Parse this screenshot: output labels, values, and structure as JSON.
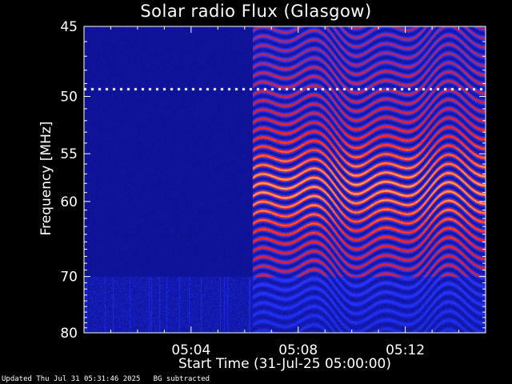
{
  "chart_data": {
    "type": "heatmap",
    "title": "Solar radio Flux (Glasgow)",
    "xlabel": "Start Time (31-Jul-25 05:00:00)",
    "ylabel": "Frequency [MHz]",
    "x_tick_labels": [
      "05:04",
      "05:08",
      "05:12"
    ],
    "x_tick_minutes": [
      4,
      8,
      12
    ],
    "x_range_minutes": [
      0,
      15
    ],
    "y_tick_labels": [
      "45",
      "50",
      "55",
      "60",
      "70",
      "80"
    ],
    "y_tick_values": [
      45,
      50,
      55,
      60,
      70,
      80
    ],
    "y_range": [
      45,
      80
    ],
    "y_scale": "reciprocal",
    "colors": {
      "background": "#000000",
      "low": "#0a0a7a",
      "mid": "#2233ff",
      "high": "#ff2010",
      "peak": "#ffb070"
    },
    "features": [
      {
        "name": "interference line",
        "frequency_mhz": 49.4
      },
      {
        "name": "flux onset",
        "minute": 6.3
      }
    ]
  },
  "footer": {
    "updated": "Updated Thu Jul 31 05:31:46 2025",
    "note": "BG subtracted"
  }
}
